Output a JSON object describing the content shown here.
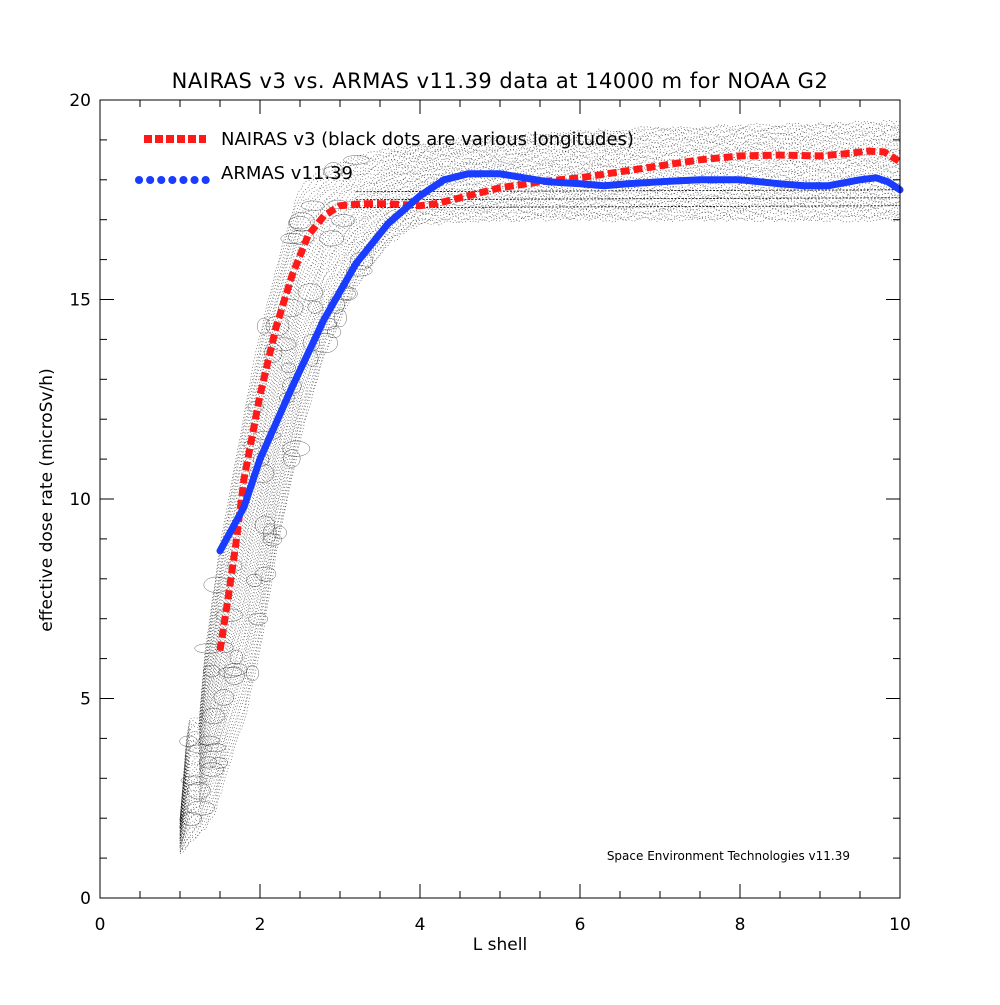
{
  "chart_data": {
    "type": "line",
    "title": "NAIRAS  v3 vs. ARMAS v11.39 data at 14000 m for NOAA G2",
    "xlabel": "L shell",
    "ylabel": "effective dose rate (microSv/h)",
    "xlim": [
      0,
      10
    ],
    "ylim": [
      0,
      20
    ],
    "xticks": [
      0,
      2,
      4,
      6,
      8,
      10
    ],
    "yticks": [
      0,
      5,
      10,
      15,
      20
    ],
    "legend_position": "top-left",
    "annotation": "Space Environment Technologies v11.39",
    "series": [
      {
        "name": "NAIRAS v3 (black dots are various longitudes)",
        "style": "dotted",
        "color": "#ff1a1a",
        "points": [
          [
            1.5,
            6.2
          ],
          [
            1.6,
            7.5
          ],
          [
            1.7,
            8.9
          ],
          [
            1.8,
            10.5
          ],
          [
            2.0,
            12.6
          ],
          [
            2.2,
            14.3
          ],
          [
            2.4,
            15.6
          ],
          [
            2.6,
            16.6
          ],
          [
            2.8,
            17.1
          ],
          [
            3.0,
            17.35
          ],
          [
            3.3,
            17.4
          ],
          [
            3.6,
            17.4
          ],
          [
            4.0,
            17.35
          ],
          [
            4.2,
            17.4
          ],
          [
            4.5,
            17.55
          ],
          [
            5.0,
            17.8
          ],
          [
            5.5,
            17.95
          ],
          [
            6.0,
            18.05
          ],
          [
            6.5,
            18.2
          ],
          [
            7.0,
            18.35
          ],
          [
            7.5,
            18.5
          ],
          [
            8.0,
            18.6
          ],
          [
            8.5,
            18.62
          ],
          [
            9.0,
            18.6
          ],
          [
            9.3,
            18.65
          ],
          [
            9.6,
            18.72
          ],
          [
            9.8,
            18.7
          ],
          [
            10.0,
            18.45
          ]
        ]
      },
      {
        "name": "ARMAS v11.39",
        "style": "solid",
        "color": "#1a3cff",
        "points": [
          [
            1.5,
            8.7
          ],
          [
            1.8,
            9.8
          ],
          [
            2.0,
            11.0
          ],
          [
            2.4,
            12.8
          ],
          [
            2.8,
            14.5
          ],
          [
            3.2,
            15.9
          ],
          [
            3.6,
            16.9
          ],
          [
            4.0,
            17.6
          ],
          [
            4.3,
            18.0
          ],
          [
            4.6,
            18.15
          ],
          [
            5.0,
            18.15
          ],
          [
            5.3,
            18.05
          ],
          [
            5.6,
            17.95
          ],
          [
            6.0,
            17.9
          ],
          [
            6.3,
            17.85
          ],
          [
            6.6,
            17.9
          ],
          [
            7.0,
            17.95
          ],
          [
            7.5,
            18.0
          ],
          [
            8.0,
            18.0
          ],
          [
            8.5,
            17.9
          ],
          [
            8.8,
            17.85
          ],
          [
            9.1,
            17.85
          ],
          [
            9.5,
            18.0
          ],
          [
            9.7,
            18.05
          ],
          [
            9.85,
            17.95
          ],
          [
            10.0,
            17.75
          ]
        ]
      }
    ],
    "scatter_envelope": {
      "color": "#000000",
      "lower": [
        [
          1.0,
          1.1
        ],
        [
          1.1,
          1.3
        ],
        [
          1.3,
          1.7
        ],
        [
          1.45,
          2.2
        ],
        [
          1.6,
          3.3
        ],
        [
          1.8,
          4.4
        ],
        [
          2.0,
          6.2
        ],
        [
          2.2,
          8.6
        ],
        [
          2.5,
          11.5
        ],
        [
          2.8,
          13.6
        ],
        [
          3.2,
          15.3
        ],
        [
          3.6,
          16.4
        ],
        [
          4.0,
          16.9
        ],
        [
          5.0,
          17.0
        ],
        [
          6.0,
          17.0
        ],
        [
          7.0,
          17.0
        ],
        [
          8.0,
          17.0
        ],
        [
          9.0,
          17.0
        ],
        [
          10.0,
          17.0
        ]
      ],
      "upper": [
        [
          1.0,
          2.0
        ],
        [
          1.05,
          3.2
        ],
        [
          1.1,
          4.5
        ],
        [
          1.25,
          4.5
        ],
        [
          1.3,
          6.0
        ],
        [
          1.5,
          8.8
        ],
        [
          1.7,
          11.0
        ],
        [
          1.9,
          13.2
        ],
        [
          2.1,
          15.0
        ],
        [
          2.3,
          16.5
        ],
        [
          2.5,
          17.8
        ],
        [
          2.8,
          18.3
        ],
        [
          3.2,
          18.6
        ],
        [
          4.0,
          18.9
        ],
        [
          5.0,
          19.1
        ],
        [
          6.0,
          19.2
        ],
        [
          7.0,
          19.3
        ],
        [
          8.0,
          19.35
        ],
        [
          9.0,
          19.4
        ],
        [
          10.0,
          19.45
        ]
      ]
    }
  }
}
